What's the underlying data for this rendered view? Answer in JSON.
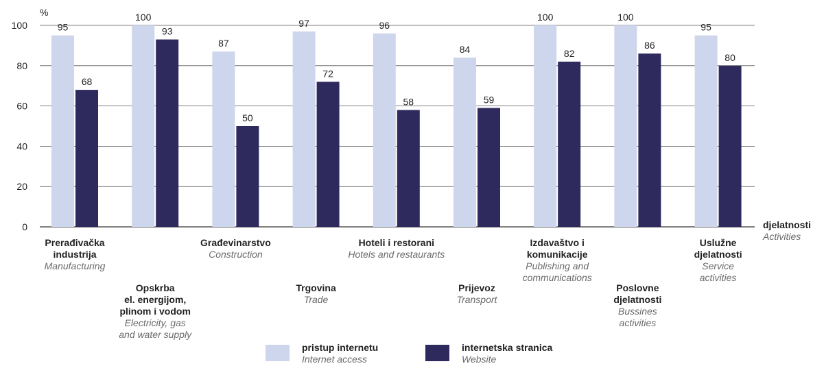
{
  "chart_data": {
    "type": "bar",
    "unit_label": "%",
    "ylim": [
      0,
      100
    ],
    "yticks": [
      0,
      20,
      40,
      60,
      80,
      100
    ],
    "grid": true,
    "xaxis_title": {
      "primary": "djelatnosti",
      "secondary": "Activities"
    },
    "categories": [
      {
        "primary": [
          "Prerađivačka",
          "industrija"
        ],
        "secondary": [
          "Manufacturing"
        ],
        "row": 0
      },
      {
        "primary": [
          "Opskrba",
          "el. energijom,",
          "plinom i vodom"
        ],
        "secondary": [
          "Electricity, gas",
          "and water supply"
        ],
        "row": 1
      },
      {
        "primary": [
          "Građevinarstvo"
        ],
        "secondary": [
          "Construction"
        ],
        "row": 0
      },
      {
        "primary": [
          "Trgovina"
        ],
        "secondary": [
          "Trade"
        ],
        "row": 1
      },
      {
        "primary": [
          "Hoteli i restorani"
        ],
        "secondary": [
          "Hotels and restaurants"
        ],
        "row": 0
      },
      {
        "primary": [
          "Prijevoz"
        ],
        "secondary": [
          "Transport"
        ],
        "row": 1
      },
      {
        "primary": [
          "Izdavaštvo i",
          "komunikacije"
        ],
        "secondary": [
          "Publishing and",
          "communications"
        ],
        "row": 0
      },
      {
        "primary": [
          "Poslovne",
          "djelatnosti"
        ],
        "secondary": [
          "Bussines",
          "activities"
        ],
        "row": 1
      },
      {
        "primary": [
          "Uslužne",
          "djelatnosti"
        ],
        "secondary": [
          "Service",
          "activities"
        ],
        "row": 0
      }
    ],
    "series": [
      {
        "name": "pristup internetu",
        "name_secondary": "Internet access",
        "color": "#cdd6ec",
        "values": [
          95,
          100,
          87,
          97,
          96,
          84,
          100,
          100,
          95
        ]
      },
      {
        "name": "internetska stranica",
        "name_secondary": "Website",
        "color": "#2e2a5e",
        "values": [
          68,
          93,
          50,
          72,
          58,
          59,
          82,
          86,
          80
        ]
      }
    ],
    "legend_position": "bottom-center"
  },
  "colors": {
    "grid": "#555555",
    "text": "#222222",
    "secondary_text": "#6a6a6a"
  }
}
